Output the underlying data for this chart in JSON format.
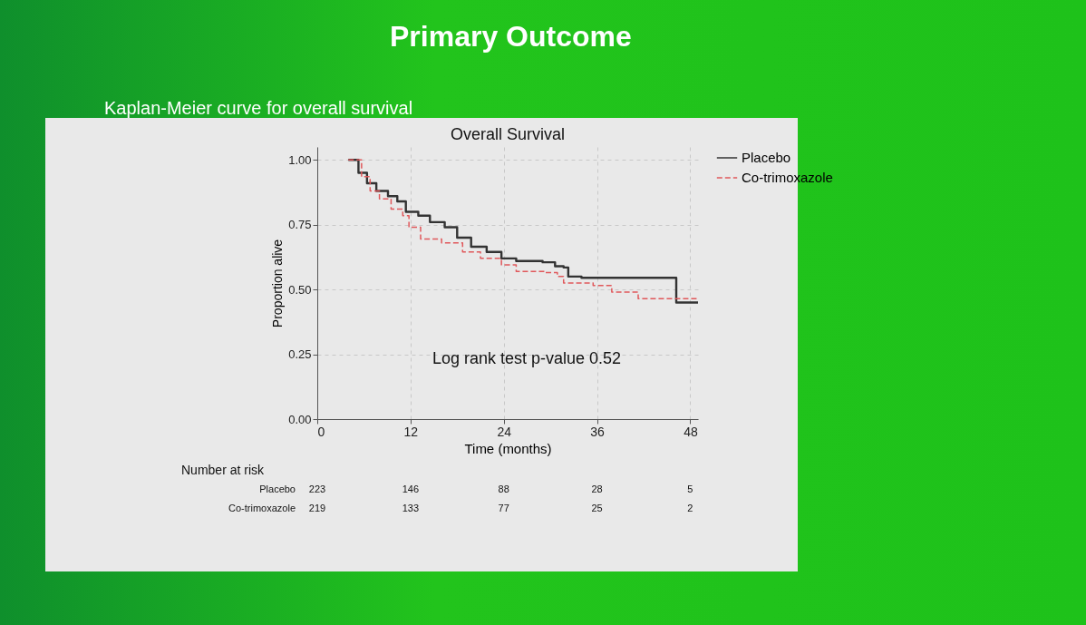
{
  "chart_data": {
    "type": "step",
    "title": "Primary Outcome",
    "subtitle": "Kaplan-Meier curve for overall survival",
    "xlabel": "Time (months)",
    "ylabel": "Proportion alive",
    "xlim": [
      0,
      49
    ],
    "xticks": [
      0,
      12,
      24,
      36,
      48
    ],
    "ylim": [
      0,
      1.05
    ],
    "yticks": [
      {
        "value": 0,
        "label": "0.00"
      },
      {
        "value": 0.25,
        "label": "0.25"
      },
      {
        "value": 0.5,
        "label": "0.50"
      },
      {
        "value": 0.75,
        "label": "0.75"
      },
      {
        "value": 1,
        "label": "1.00"
      }
    ],
    "grid": true,
    "legend": "right",
    "series": [
      {
        "name": "Placebo",
        "color": "#333333",
        "line_style": "solid",
        "x": [
          4,
          5.3,
          6.4,
          7.6,
          9.1,
          10.3,
          11.4,
          13,
          14.5,
          16.4,
          18,
          19.8,
          21.8,
          23.7,
          25.6,
          29,
          30.6,
          31.7,
          32.3,
          34,
          46.2,
          49
        ],
        "values": [
          1,
          0.95,
          0.91,
          0.88,
          0.86,
          0.84,
          0.8,
          0.785,
          0.76,
          0.74,
          0.7,
          0.665,
          0.645,
          0.62,
          0.61,
          0.605,
          0.59,
          0.585,
          0.55,
          0.545,
          0.45,
          0.45
        ]
      },
      {
        "name": "Co-trimoxazole",
        "color": "#e0585b",
        "line_style": "dashed",
        "x": [
          4,
          5.7,
          6.8,
          8,
          9.5,
          11,
          11.8,
          13.3,
          16,
          18.7,
          21,
          23.7,
          25.6,
          29.4,
          30.9,
          31.7,
          35.5,
          37.9,
          41.3,
          49
        ],
        "values": [
          1,
          0.935,
          0.88,
          0.85,
          0.81,
          0.785,
          0.74,
          0.695,
          0.68,
          0.645,
          0.62,
          0.595,
          0.57,
          0.565,
          0.55,
          0.525,
          0.515,
          0.49,
          0.465,
          0.465
        ]
      }
    ],
    "annotations": [
      "Overall Survival",
      "Log rank test p-value 0.52",
      "Number at risk",
      "Placebo",
      "223",
      "146",
      "88",
      "28",
      "5",
      "Co-trimoxazole",
      "219",
      "133",
      "77",
      "25",
      "2"
    ]
  }
}
